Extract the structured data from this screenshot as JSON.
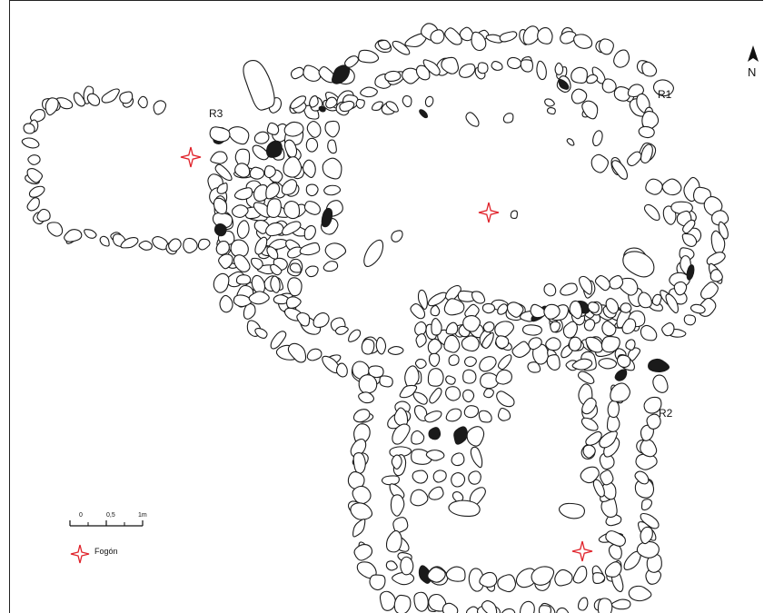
{
  "north_label": "N",
  "rooms": [
    {
      "id": "room-r1",
      "label": "R1"
    },
    {
      "id": "room-r2",
      "label": "R2"
    },
    {
      "id": "room-r3",
      "label": "R3"
    }
  ],
  "scale_bar": {
    "ticks": [
      "0",
      "0,5",
      "1m"
    ]
  },
  "legend": {
    "hearth_label": "Fogón",
    "hearth_color": "#e0222a"
  },
  "colors": {
    "outline": "#1a1a1a",
    "background": "#ffffff"
  }
}
